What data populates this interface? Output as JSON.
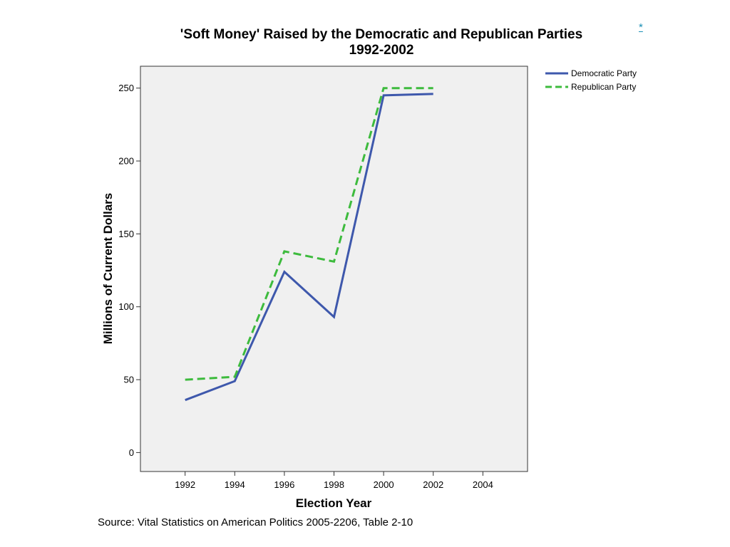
{
  "chart_data": {
    "type": "line",
    "title": "'Soft Money' Raised by the Democratic and Republican Parties",
    "subtitle": "1992-2002",
    "xlabel": "Election Year",
    "ylabel": "Millions of Current Dollars",
    "xlim": [
      1990.2,
      2005.8
    ],
    "ylim": [
      -13,
      265
    ],
    "x_ticks": [
      "1992",
      "1994",
      "1996",
      "1998",
      "2000",
      "2002",
      "2004"
    ],
    "y_ticks": [
      "0",
      "50",
      "100",
      "150",
      "200",
      "250"
    ],
    "grid": false,
    "legend_position": "top-right-outside",
    "plot_background": "#f0f0f0",
    "series": [
      {
        "name": "Democratic Party",
        "style": "solid",
        "color": "#3e58ac",
        "x": [
          1992,
          1994,
          1996,
          1998,
          2000,
          2002
        ],
        "values": [
          36,
          49,
          124,
          93,
          245,
          246
        ]
      },
      {
        "name": "Republican Party",
        "style": "dashed",
        "color": "#3dbb3d",
        "x": [
          1992,
          1994,
          1996,
          1998,
          2000,
          2002
        ],
        "values": [
          50,
          52,
          138,
          131,
          250,
          250
        ]
      }
    ]
  },
  "source": "Source: Vital Statistics on American Politics 2005-2206, Table 2-10",
  "footnote_marker": "*"
}
